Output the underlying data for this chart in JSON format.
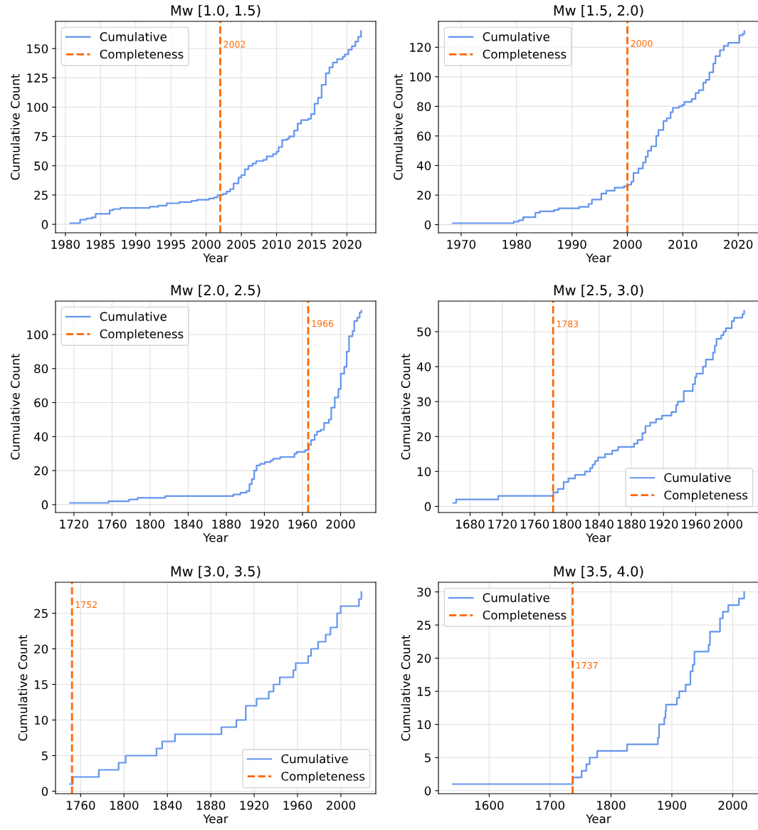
{
  "chart_data": [
    {
      "type": "step",
      "title": "Mw [1.0, 1.5)",
      "xlabel": "Year",
      "ylabel": "Cumulative Count",
      "xlim": [
        1978.6,
        2024.1
      ],
      "ylim": [
        -7.2,
        173.2
      ],
      "xticks": [
        1980,
        1985,
        1990,
        1995,
        2000,
        2005,
        2010,
        2015,
        2020
      ],
      "yticks": [
        0,
        25,
        50,
        75,
        100,
        125,
        150
      ],
      "grid": true,
      "legend": "top left",
      "series": [
        {
          "name": "Cumulative",
          "color": "#6495ed",
          "x": [
            1980.7,
            1982.1,
            1983.0,
            1983.8,
            1984.3,
            1986.3,
            1986.8,
            1987.8,
            1992.0,
            1993.2,
            1994.4,
            1996.2,
            1997.9,
            1998.7,
            2000.4,
            2001.1,
            2001.6,
            2002.4,
            2002.9,
            2003.4,
            2003.9,
            2004.6,
            2005.0,
            2005.5,
            2006.0,
            2006.6,
            2007.1,
            2008.1,
            2008.6,
            2009.5,
            2010.0,
            2010.3,
            2010.8,
            2011.5,
            2011.8,
            2012.5,
            2013.0,
            2013.5,
            2014.5,
            2014.9,
            2015.4,
            2015.9,
            2016.4,
            2017.0,
            2017.5,
            2018.0,
            2018.6,
            2019.4,
            2019.7,
            2020.2,
            2020.7,
            2021.2,
            2021.6,
            2022.0
          ],
          "values": [
            1,
            4,
            5,
            6,
            9,
            12,
            13,
            14,
            15,
            16,
            18,
            19,
            20,
            21,
            22,
            23,
            25,
            26,
            28,
            30,
            35,
            40,
            42,
            47,
            50,
            52,
            54,
            55,
            58,
            60,
            62,
            66,
            72,
            73,
            75,
            80,
            86,
            89,
            90,
            94,
            103,
            108,
            119,
            129,
            134,
            138,
            141,
            143,
            145,
            149,
            152,
            156,
            160,
            165
          ]
        },
        {
          "type": "line",
          "name": "Completeness",
          "color": "#ff6600",
          "line_style": "dashed",
          "x": [
            2002,
            2002
          ],
          "values": [
            -7.2,
            173.2
          ]
        }
      ],
      "annotations": [
        {
          "text": "2002",
          "x": 2002,
          "y": 153
        }
      ]
    },
    {
      "type": "step",
      "title": "Mw [1.5, 2.0)",
      "xlabel": "Year",
      "ylabel": "Cumulative Count",
      "xlim": [
        1965.9,
        2023.7
      ],
      "ylim": [
        -5.5,
        137.5
      ],
      "xticks": [
        1970,
        1980,
        1990,
        2000,
        2010,
        2020
      ],
      "yticks": [
        0,
        20,
        40,
        60,
        80,
        100,
        120
      ],
      "grid": true,
      "legend": "top left",
      "series": [
        {
          "name": "Cumulative",
          "color": "#6495ed",
          "x": [
            1968.5,
            1979.5,
            1980.4,
            1981.2,
            1983.4,
            1984.2,
            1986.8,
            1987.6,
            1991.3,
            1993.0,
            1993.6,
            1995.3,
            1996.2,
            1997.7,
            1999.4,
            2000.1,
            2000.7,
            2001.1,
            2002.0,
            2002.8,
            2003.3,
            2003.7,
            2004.3,
            2005.2,
            2005.6,
            2006.5,
            2007.1,
            2007.8,
            2008.2,
            2009.3,
            2009.9,
            2010.3,
            2011.6,
            2012.3,
            2012.9,
            2013.7,
            2014.2,
            2014.8,
            2015.5,
            2015.9,
            2016.7,
            2017.4,
            2018.2,
            2020.2,
            2020.8,
            2021.1
          ],
          "values": [
            1,
            2,
            3,
            5,
            8,
            9,
            10,
            11,
            12,
            14,
            17,
            21,
            23,
            25,
            26,
            27,
            29,
            35,
            38,
            42,
            46,
            50,
            53,
            60,
            64,
            70,
            72,
            76,
            79,
            80,
            81,
            83,
            85,
            89,
            91,
            96,
            98,
            103,
            109,
            114,
            118,
            121,
            123,
            128,
            129,
            131
          ]
        },
        {
          "type": "line",
          "name": "Completeness",
          "color": "#ff6600",
          "line_style": "dashed",
          "x": [
            2000,
            2000
          ],
          "values": [
            -5.5,
            137.5
          ]
        }
      ],
      "annotations": [
        {
          "text": "2000",
          "x": 2000,
          "y": 122
        }
      ]
    },
    {
      "type": "step",
      "title": "Mw [2.0, 2.5)",
      "xlabel": "Year",
      "ylabel": "Cumulative Count",
      "xlim": [
        1700.7,
        2037.0
      ],
      "ylim": [
        -4.65,
        119.65
      ],
      "xticks": [
        1720,
        1760,
        1800,
        1840,
        1880,
        1920,
        1960,
        2000
      ],
      "yticks": [
        0,
        20,
        40,
        60,
        80,
        100
      ],
      "grid": true,
      "legend": "top left",
      "series": [
        {
          "name": "Cumulative",
          "color": "#6495ed",
          "x": [
            1716,
            1756.3,
            1778,
            1787,
            1816,
            1887.4,
            1894.9,
            1901.3,
            1904.3,
            1906.8,
            1909.3,
            1911.8,
            1915.5,
            1920.5,
            1926.7,
            1929.2,
            1936.6,
            1951.6,
            1954,
            1962.8,
            1966.5,
            1969,
            1972.8,
            1975.3,
            1979,
            1982.7,
            1987.7,
            1990.2,
            1993.9,
            1997.7,
            2000.2,
            2003.9,
            2006.4,
            2008.9,
            2012.6,
            2014.4,
            2017.6,
            2020.1,
            2021.8
          ],
          "values": [
            1,
            2,
            3,
            4,
            5,
            6,
            7,
            8,
            12,
            15,
            20,
            23,
            24,
            25,
            26,
            27,
            28,
            30,
            31,
            32,
            35,
            38,
            41,
            43,
            44,
            48,
            50,
            57,
            63,
            68,
            77,
            81,
            90,
            99,
            102,
            108,
            110,
            113,
            114
          ]
        },
        {
          "type": "line",
          "name": "Completeness",
          "color": "#ff6600",
          "line_style": "dashed",
          "x": [
            1966,
            1966
          ],
          "values": [
            -4.65,
            119.65
          ]
        }
      ],
      "annotations": [
        {
          "text": "1966",
          "x": 1966,
          "y": 106
        }
      ]
    },
    {
      "type": "step",
      "title": "Mw [2.5, 3.0)",
      "xlabel": "Year",
      "ylabel": "Cumulative Count",
      "xlim": [
        1640.7,
        2038.1
      ],
      "ylim": [
        -1.75,
        58.75
      ],
      "xticks": [
        1680,
        1720,
        1760,
        1800,
        1840,
        1880,
        1920,
        1960,
        2000
      ],
      "yticks": [
        0,
        10,
        20,
        30,
        40,
        50
      ],
      "grid": true,
      "legend": "bottom right",
      "series": [
        {
          "name": "Cumulative",
          "color": "#6495ed",
          "x": [
            1659,
            1662.7,
            1715,
            1783.2,
            1788.8,
            1796.1,
            1802,
            1810.2,
            1822.6,
            1829,
            1832,
            1835,
            1838.7,
            1847.5,
            1856.4,
            1863.7,
            1883.4,
            1887.8,
            1893.7,
            1897.5,
            1903.4,
            1910.7,
            1918.1,
            1929.8,
            1935.7,
            1937.8,
            1945.1,
            1956.3,
            1959.2,
            1960.7,
            1968.9,
            1972.5,
            1981.3,
            1983.6,
            1985.7,
            1991.6,
            1994.5,
            1997.4,
            2004.7,
            2007.6,
            2017.9,
            2020
          ],
          "values": [
            1,
            2,
            3,
            4,
            5,
            7,
            8,
            9,
            10,
            11,
            12,
            13,
            14,
            15,
            16,
            17,
            18,
            19,
            21,
            23,
            24,
            25,
            26,
            27,
            29,
            30,
            33,
            35,
            37,
            38,
            40,
            42,
            44,
            46,
            48,
            49,
            50,
            51,
            53,
            54,
            55,
            56
          ]
        },
        {
          "type": "line",
          "name": "Completeness",
          "color": "#ff6600",
          "line_style": "dashed",
          "x": [
            1783,
            1783
          ],
          "values": [
            -1.75,
            58.75
          ]
        }
      ],
      "annotations": [
        {
          "text": "1783",
          "x": 1783,
          "y": 52
        }
      ]
    },
    {
      "type": "step",
      "title": "Mw [3.0, 3.5)",
      "xlabel": "Year",
      "ylabel": "Cumulative Count",
      "xlim": [
        1736.8,
        2032.2
      ],
      "ylim": [
        -0.35,
        29.35
      ],
      "xticks": [
        1760,
        1800,
        1840,
        1880,
        1920,
        1960,
        2000
      ],
      "yticks": [
        0,
        5,
        10,
        15,
        20,
        25
      ],
      "grid": true,
      "legend": "bottom right",
      "series": [
        {
          "name": "Cumulative",
          "color": "#6495ed",
          "x": [
            1750.2,
            1752.8,
            1776.8,
            1795,
            1801.5,
            1829.9,
            1835.2,
            1847,
            1889.8,
            1903.6,
            1912.3,
            1922.2,
            1933.5,
            1937.9,
            1943.6,
            1956.1,
            1958.3,
            1969.8,
            1972.5,
            1979,
            1986,
            1990.4,
            1996.5,
            1999.8,
            2016.7,
            2018.9
          ],
          "values": [
            1,
            2,
            3,
            4,
            5,
            6,
            7,
            8,
            9,
            10,
            12,
            13,
            14,
            15,
            16,
            17,
            18,
            19,
            20,
            21,
            22,
            23,
            25,
            26,
            27,
            28
          ]
        },
        {
          "type": "line",
          "name": "Completeness",
          "color": "#ff6600",
          "line_style": "dashed",
          "x": [
            1752,
            1752
          ],
          "values": [
            -0.35,
            29.35
          ]
        }
      ],
      "annotations": [
        {
          "text": "1752",
          "x": 1752,
          "y": 26.1
        }
      ]
    },
    {
      "type": "step",
      "title": "Mw [3.5, 4.0)",
      "xlabel": "Year",
      "ylabel": "Cumulative Count",
      "xlim": [
        1516.6,
        2042.6
      ],
      "ylim": [
        -0.45,
        31.45
      ],
      "xticks": [
        1600,
        1700,
        1800,
        1900,
        2000
      ],
      "yticks": [
        0,
        5,
        10,
        15,
        20,
        25,
        30
      ],
      "grid": true,
      "legend": "top left",
      "series": [
        {
          "name": "Cumulative",
          "color": "#6495ed",
          "x": [
            1540.5,
            1737.7,
            1751.8,
            1759.5,
            1765,
            1777.4,
            1826.5,
            1877,
            1879,
            1887.5,
            1889.5,
            1890.3,
            1908.2,
            1912.1,
            1922.6,
            1930.4,
            1934.2,
            1937,
            1960.3,
            1962.6,
            1979,
            1983.7,
            1992.6,
            2010.1,
            2018.7
          ],
          "values": [
            1,
            2,
            3,
            4,
            5,
            6,
            7,
            8,
            10,
            11,
            12,
            13,
            14,
            15,
            16,
            18,
            19,
            21,
            22,
            24,
            26,
            27,
            28,
            29,
            30
          ]
        },
        {
          "type": "line",
          "name": "Completeness",
          "color": "#ff6600",
          "line_style": "dashed",
          "x": [
            1737,
            1737
          ],
          "values": [
            -0.45,
            31.45
          ]
        }
      ],
      "annotations": [
        {
          "text": "1737",
          "x": 1737,
          "y": 18.8
        }
      ]
    }
  ]
}
